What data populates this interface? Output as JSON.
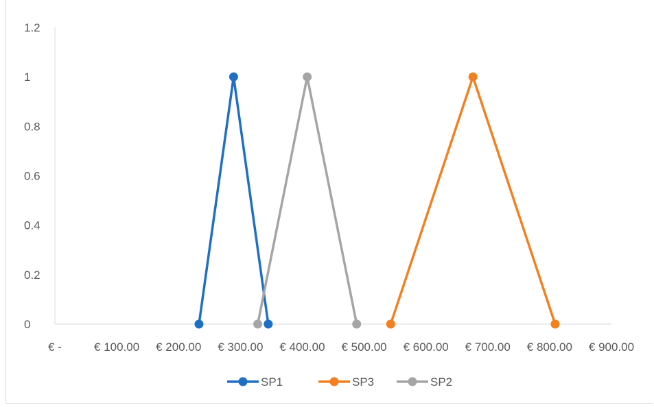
{
  "chart_data": {
    "type": "line",
    "title": "",
    "xlabel": "",
    "ylabel": "",
    "xlim": [
      0,
      900
    ],
    "ylim": [
      0,
      1.2
    ],
    "x_tick_labels": [
      "€ -",
      "€ 100.00",
      "€ 200.00",
      "€ 300.00",
      "€ 400.00",
      "€ 500.00",
      "€ 600.00",
      "€ 700.00",
      "€ 800.00",
      "€ 900.00"
    ],
    "y_tick_labels": [
      "0",
      "0.2",
      "0.4",
      "0.6",
      "0.8",
      "1",
      "1.2"
    ],
    "grid": false,
    "legend_position": "bottom",
    "series": [
      {
        "name": "SP1",
        "color": "#1f6fc5",
        "points": [
          [
            233,
            0
          ],
          [
            289,
            1
          ],
          [
            345,
            0
          ]
        ]
      },
      {
        "name": "SP3",
        "color": "#f28021",
        "points": [
          [
            543,
            0
          ],
          [
            676,
            1
          ],
          [
            809,
            0
          ]
        ]
      },
      {
        "name": "SP2",
        "color": "#a5a5a5",
        "points": [
          [
            328,
            0
          ],
          [
            408,
            1
          ],
          [
            488,
            0
          ]
        ]
      }
    ]
  }
}
